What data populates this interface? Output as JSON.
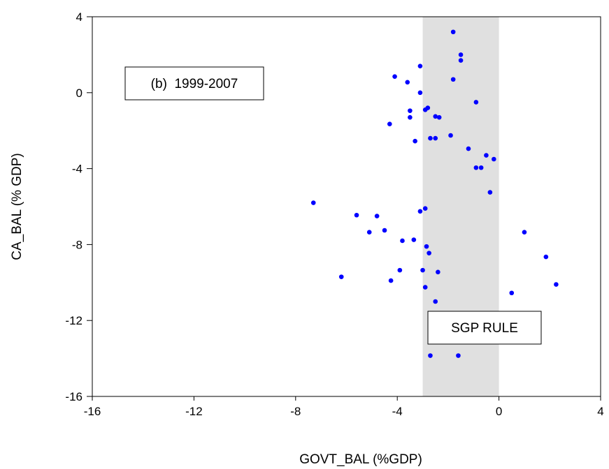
{
  "chart_data": {
    "type": "scatter",
    "xlabel": "GOVT_BAL (%GDP)",
    "ylabel": "CA_BAL (% GDP)",
    "xlim": [
      -16,
      4
    ],
    "ylim": [
      -16,
      4
    ],
    "x_ticks": [
      -16,
      -12,
      -8,
      -4,
      0,
      4
    ],
    "y_ticks": [
      4,
      0,
      -4,
      -8,
      -12,
      -16
    ],
    "x_tick_labels": [
      "-16",
      "-12",
      "-8",
      "-4",
      "0",
      "4"
    ],
    "y_tick_labels": [
      "4",
      "0",
      "-4",
      "-8",
      "-12",
      "-16"
    ],
    "grid": false,
    "point_color": "#0000ff",
    "shaded_region": {
      "x_from": -3,
      "x_to": 0,
      "color": "#e0e0e0",
      "label": "SGP RULE"
    },
    "annotation": "(b)  1999-2007",
    "points": [
      {
        "x": -1.8,
        "y": 3.2
      },
      {
        "x": -1.5,
        "y": 2.0
      },
      {
        "x": -1.5,
        "y": 1.7
      },
      {
        "x": -3.1,
        "y": 1.4
      },
      {
        "x": -4.1,
        "y": 0.85
      },
      {
        "x": -1.8,
        "y": 0.7
      },
      {
        "x": -3.6,
        "y": 0.55
      },
      {
        "x": -3.1,
        "y": 0.0
      },
      {
        "x": -0.9,
        "y": -0.5
      },
      {
        "x": -2.8,
        "y": -0.8
      },
      {
        "x": -2.9,
        "y": -0.9
      },
      {
        "x": -3.5,
        "y": -0.95
      },
      {
        "x": -2.5,
        "y": -1.25
      },
      {
        "x": -2.35,
        "y": -1.3
      },
      {
        "x": -3.5,
        "y": -1.3
      },
      {
        "x": -4.3,
        "y": -1.65
      },
      {
        "x": -1.9,
        "y": -2.25
      },
      {
        "x": -2.7,
        "y": -2.4
      },
      {
        "x": -2.5,
        "y": -2.4
      },
      {
        "x": -3.3,
        "y": -2.55
      },
      {
        "x": -1.2,
        "y": -2.95
      },
      {
        "x": -0.5,
        "y": -3.3
      },
      {
        "x": -0.2,
        "y": -3.5
      },
      {
        "x": -0.9,
        "y": -3.95
      },
      {
        "x": -0.7,
        "y": -3.95
      },
      {
        "x": -0.35,
        "y": -5.25
      },
      {
        "x": -7.3,
        "y": -5.8
      },
      {
        "x": -2.9,
        "y": -6.1
      },
      {
        "x": -3.1,
        "y": -6.25
      },
      {
        "x": -5.6,
        "y": -6.45
      },
      {
        "x": -4.8,
        "y": -6.5
      },
      {
        "x": -4.5,
        "y": -7.25
      },
      {
        "x": -5.1,
        "y": -7.35
      },
      {
        "x": 1.0,
        "y": -7.35
      },
      {
        "x": -3.8,
        "y": -7.8
      },
      {
        "x": -3.35,
        "y": -7.75
      },
      {
        "x": -2.85,
        "y": -8.1
      },
      {
        "x": -2.75,
        "y": -8.45
      },
      {
        "x": 1.85,
        "y": -8.65
      },
      {
        "x": -3.9,
        "y": -9.35
      },
      {
        "x": -3.0,
        "y": -9.35
      },
      {
        "x": -2.4,
        "y": -9.45
      },
      {
        "x": -6.2,
        "y": -9.7
      },
      {
        "x": -4.25,
        "y": -9.9
      },
      {
        "x": -2.9,
        "y": -10.25
      },
      {
        "x": 2.25,
        "y": -10.1
      },
      {
        "x": 0.5,
        "y": -10.55
      },
      {
        "x": -2.5,
        "y": -11.0
      },
      {
        "x": -2.7,
        "y": -13.85
      },
      {
        "x": -1.6,
        "y": -13.85
      }
    ]
  }
}
